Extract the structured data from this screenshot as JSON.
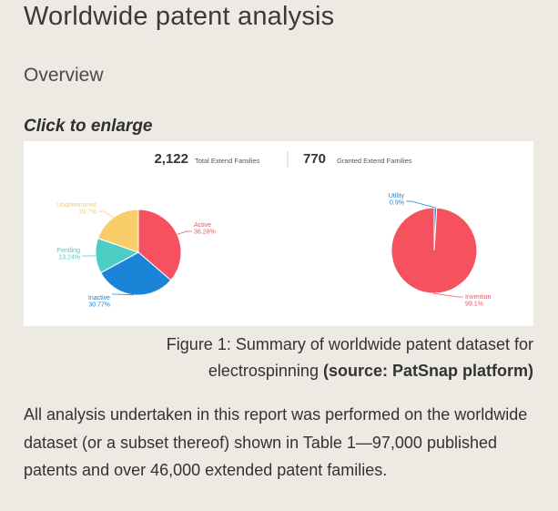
{
  "page": {
    "title": "Worldwide patent analysis",
    "section_heading": "Overview",
    "enlarge_link": "Click to enlarge",
    "figure": {
      "stats": [
        {
          "value": "2,122",
          "label": "Total Extend Families"
        },
        {
          "value": "770",
          "label": "Granted Extend Families"
        }
      ]
    },
    "caption": {
      "text": "Figure 1: Summary of worldwide patent dataset for electrospinning",
      "source": "(source: PatSnap platform)"
    },
    "body": "All analysis undertaken in this report was performed on the worldwide dataset (or a subset thereof) shown in Table 1—97,000 published patents and over 46,000 extended patent families."
  },
  "chart_data": [
    {
      "type": "pie",
      "series": [
        {
          "label": "Active",
          "value": 36.28,
          "pct_label": "36.28%",
          "color": "#f5515f"
        },
        {
          "label": "Inactive",
          "value": 30.77,
          "pct_label": "30.77%",
          "color": "#1a84d6"
        },
        {
          "label": "Pending",
          "value": 13.24,
          "pct_label": "13.24%",
          "color": "#4ecdc4"
        },
        {
          "label": "Undetermined",
          "value": 19.7,
          "pct_label": "19.7%",
          "color": "#f9cd6a"
        }
      ]
    },
    {
      "type": "pie",
      "series": [
        {
          "label": "Invention",
          "value": 99.1,
          "pct_label": "99.1%",
          "color": "#f5515f"
        },
        {
          "label": "Utility",
          "value": 0.9,
          "pct_label": "0.9%",
          "color": "#1a84d6"
        }
      ]
    }
  ]
}
